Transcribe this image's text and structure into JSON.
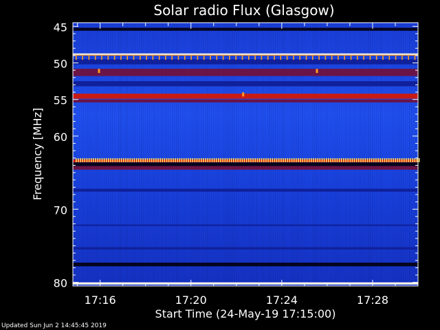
{
  "chart_data": {
    "type": "heatmap",
    "title": "Solar radio Flux (Glasgow)",
    "xlabel": "Start Time (24-May-19 17:15:00)",
    "ylabel": "Frequency [MHz]",
    "ylim": [
      44.5,
      80.5
    ],
    "y_inverted": true,
    "xlim_minutes_after_17_00": [
      14.8,
      30.0
    ],
    "y_ticks": [
      "45",
      "50",
      "55",
      "60",
      "70",
      "80"
    ],
    "y_tick_values": [
      45,
      50,
      55,
      60,
      70,
      80
    ],
    "x_ticks": [
      "17:16",
      "17:20",
      "17:24",
      "17:28"
    ],
    "x_tick_values_minutes": [
      16,
      20,
      24,
      28
    ],
    "background_intensity": "blue",
    "bands": [
      {
        "from": 45.2,
        "to": 45.6,
        "intensity": "black"
      },
      {
        "from": 48.7,
        "to": 48.9,
        "intensity": "white"
      },
      {
        "from": 48.9,
        "to": 49.0,
        "intensity": "orange"
      },
      {
        "from": 49.5,
        "to": 50.2,
        "intensity": "dark-blue"
      },
      {
        "from": 50.8,
        "to": 51.8,
        "intensity": "dark-red"
      },
      {
        "from": 52.5,
        "to": 53.2,
        "intensity": "dark-blue"
      },
      {
        "from": 54.2,
        "to": 54.9,
        "intensity": "red"
      },
      {
        "from": 55.0,
        "to": 55.4,
        "intensity": "dark-red"
      },
      {
        "from": 63.2,
        "to": 63.6,
        "intensity": "red"
      },
      {
        "from": 63.6,
        "to": 64.1,
        "intensity": "black"
      },
      {
        "from": 64.1,
        "to": 64.6,
        "intensity": "dark-red"
      },
      {
        "from": 67.2,
        "to": 67.6,
        "intensity": "dark-blue"
      },
      {
        "from": 72.1,
        "to": 72.3,
        "intensity": "dark-blue"
      },
      {
        "from": 75.2,
        "to": 75.5,
        "intensity": "dark-blue"
      },
      {
        "from": 77.3,
        "to": 77.8,
        "intensity": "black"
      },
      {
        "from": 80.0,
        "to": 80.3,
        "intensity": "white"
      }
    ],
    "spikes": [
      {
        "freq": 49.3,
        "color": "orange",
        "count": 54
      },
      {
        "freq": 63.3,
        "color": "yellow",
        "count": 160
      }
    ],
    "hotspots": [
      {
        "time": 15.95,
        "freq": 51.1,
        "color": "orange"
      },
      {
        "time": 22.3,
        "freq": 54.3,
        "color": "orange"
      },
      {
        "time": 25.55,
        "freq": 51.1,
        "color": "orange"
      }
    ]
  },
  "footer": {
    "updated": "Updated Sun Jun  2 14:45:45 2019"
  },
  "colors": {
    "white": "#fff8e8",
    "yellow": "#ffe060",
    "orange": "#ff9a20",
    "red": "#c81a14",
    "dark-red": "#6a1448",
    "blue": "#1e46e6",
    "dark-blue": "#10209a",
    "black": "#04041e",
    "axis": "#ffffff"
  }
}
